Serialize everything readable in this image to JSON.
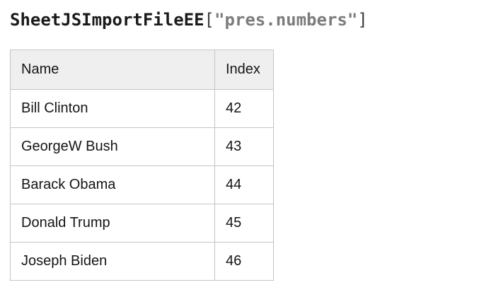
{
  "title": {
    "object_name": "SheetJSImportFileEE",
    "open_bracket": "[",
    "key_string": "\"pres.numbers\"",
    "close_bracket": "]"
  },
  "table": {
    "columns": [
      "Name",
      "Index"
    ],
    "rows": [
      {
        "name": "Bill Clinton",
        "index": "42"
      },
      {
        "name": "GeorgeW Bush",
        "index": "43"
      },
      {
        "name": "Barack Obama",
        "index": "44"
      },
      {
        "name": "Donald Trump",
        "index": "45"
      },
      {
        "name": "Joseph Biden",
        "index": "46"
      }
    ]
  },
  "colors": {
    "title_text": "#1a1a1a",
    "title_bracket": "#3d3d3d",
    "title_string": "#7c7c7c",
    "table_border": "#c4c4c4",
    "header_background": "#efefef",
    "body_text": "#151515",
    "page_background": "#ffffff"
  }
}
